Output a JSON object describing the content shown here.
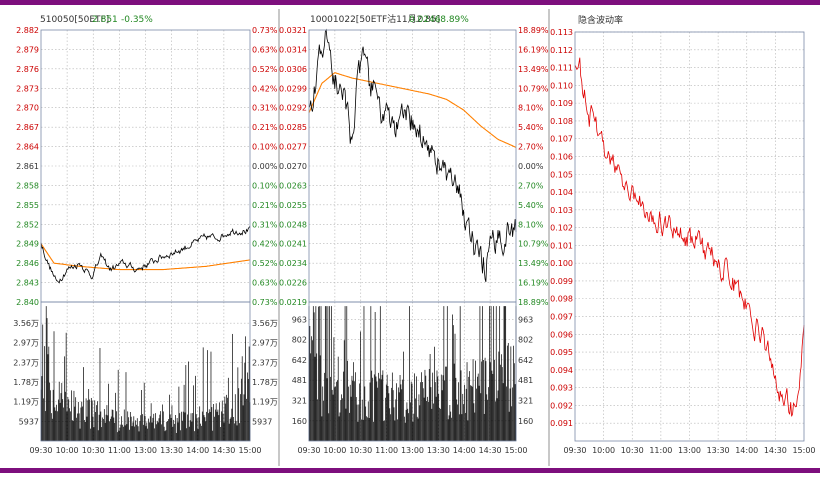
{
  "colors": {
    "frame": "#7d0f7d",
    "up": "#cc0000",
    "down": "#228822",
    "neutral": "#333333",
    "price_line": "#000000",
    "avg_line": "#ff8000",
    "iv_line": "#e00000",
    "grid": "#b4b4b4",
    "border": "#7a8aa8"
  },
  "chart_data": [
    {
      "type": "line",
      "title": "510050[50ETF]",
      "last_price": "2.851",
      "change_pct": "-0.35%",
      "x_ticks": [
        "09:30",
        "10:00",
        "10:30",
        "11:00",
        "13:00",
        "13:30",
        "14:00",
        "14:30",
        "15:00"
      ],
      "price_axis": {
        "ylim": [
          2.84,
          2.882
        ],
        "base": 2.861,
        "ticks": [
          "2.882",
          "2.879",
          "2.876",
          "2.873",
          "2.870",
          "2.867",
          "2.864",
          "2.861",
          "2.858",
          "2.855",
          "2.852",
          "2.849",
          "2.846",
          "2.843",
          "2.840"
        ]
      },
      "pct_axis": {
        "ticks": [
          "0.73%",
          "0.63%",
          "0.52%",
          "0.42%",
          "0.31%",
          "0.21%",
          "0.10%",
          "0.00%",
          "0.10%",
          "0.21%",
          "0.31%",
          "0.42%",
          "0.52%",
          "0.63%",
          "0.73%"
        ]
      },
      "volume_axis": {
        "max": 42000,
        "tick_values": [
          35600,
          29700,
          23700,
          17800,
          11900,
          5937
        ],
        "tick_labels": [
          "3.56万",
          "2.97万",
          "2.37万",
          "1.78万",
          "1.19万",
          "5937"
        ]
      },
      "price_series": {
        "name": "price",
        "knots": [
          [
            0,
            2.849
          ],
          [
            8,
            2.846
          ],
          [
            18,
            2.843
          ],
          [
            30,
            2.845
          ],
          [
            45,
            2.846
          ],
          [
            58,
            2.844
          ],
          [
            70,
            2.847
          ],
          [
            80,
            2.845
          ],
          [
            95,
            2.846
          ],
          [
            110,
            2.845
          ],
          [
            125,
            2.846
          ],
          [
            140,
            2.847
          ],
          [
            160,
            2.848
          ],
          [
            175,
            2.849
          ],
          [
            190,
            2.85
          ],
          [
            205,
            2.85
          ],
          [
            220,
            2.851
          ],
          [
            235,
            2.851
          ],
          [
            241,
            2.851
          ]
        ],
        "noise": 0.0009
      },
      "avg_series": {
        "name": "avg",
        "knots": [
          [
            0,
            2.849
          ],
          [
            15,
            2.846
          ],
          [
            45,
            2.8455
          ],
          [
            90,
            2.845
          ],
          [
            140,
            2.845
          ],
          [
            190,
            2.8455
          ],
          [
            241,
            2.8465
          ]
        ]
      },
      "volume_series": {
        "knots": [
          [
            0,
            34000
          ],
          [
            10,
            15000
          ],
          [
            30,
            11000
          ],
          [
            60,
            9000
          ],
          [
            100,
            7000
          ],
          [
            150,
            6000
          ],
          [
            200,
            8000
          ],
          [
            230,
            12000
          ],
          [
            241,
            30000
          ]
        ],
        "spike_chance": 0.12
      }
    },
    {
      "type": "line",
      "title": "10001022[50ETF沽11月2.85]",
      "last_price": "0.0246",
      "change_pct": "-8.89%",
      "x_ticks": [
        "09:30",
        "10:00",
        "10:30",
        "11:00",
        "13:00",
        "13:30",
        "14:00",
        "14:30",
        "15:00"
      ],
      "price_axis": {
        "ylim": [
          0.0219,
          0.0321
        ],
        "base": 0.027,
        "ticks": [
          "0.0321",
          "0.0314",
          "0.0306",
          "0.0299",
          "0.0292",
          "0.0285",
          "0.0277",
          "0.0270",
          "0.0263",
          "0.0255",
          "0.0248",
          "0.0241",
          "0.0234",
          "0.0226",
          "0.0219"
        ]
      },
      "pct_axis": {
        "ticks": [
          "18.89%",
          "16.19%",
          "13.49%",
          "10.79%",
          "8.10%",
          "5.40%",
          "2.70%",
          "0.00%",
          "2.70%",
          "5.40%",
          "8.10%",
          "10.79%",
          "13.49%",
          "16.19%",
          "18.89%"
        ]
      },
      "volume_axis": {
        "max": 1100,
        "tick_values": [
          963,
          802,
          642,
          481,
          321,
          160
        ],
        "tick_labels": [
          "963",
          "802",
          "642",
          "481",
          "321",
          "160"
        ]
      },
      "price_series": {
        "name": "price",
        "knots": [
          [
            0,
            0.029
          ],
          [
            6,
            0.03
          ],
          [
            14,
            0.0312
          ],
          [
            22,
            0.0318
          ],
          [
            30,
            0.0302
          ],
          [
            40,
            0.0296
          ],
          [
            48,
            0.0282
          ],
          [
            55,
            0.0296
          ],
          [
            62,
            0.031
          ],
          [
            70,
            0.0302
          ],
          [
            85,
            0.029
          ],
          [
            100,
            0.0284
          ],
          [
            115,
            0.0288
          ],
          [
            130,
            0.0282
          ],
          [
            145,
            0.0275
          ],
          [
            160,
            0.0266
          ],
          [
            175,
            0.0258
          ],
          [
            185,
            0.0248
          ],
          [
            195,
            0.0236
          ],
          [
            205,
            0.0233
          ],
          [
            212,
            0.0238
          ],
          [
            220,
            0.0242
          ],
          [
            230,
            0.0246
          ],
          [
            241,
            0.0246
          ]
        ],
        "noise": 0.0009
      },
      "avg_series": {
        "name": "avg",
        "knots": [
          [
            0,
            0.029
          ],
          [
            15,
            0.0301
          ],
          [
            30,
            0.0305
          ],
          [
            50,
            0.0303
          ],
          [
            80,
            0.0301
          ],
          [
            110,
            0.0299
          ],
          [
            140,
            0.0297
          ],
          [
            160,
            0.0295
          ],
          [
            180,
            0.0291
          ],
          [
            200,
            0.0285
          ],
          [
            220,
            0.028
          ],
          [
            241,
            0.0277
          ]
        ]
      },
      "volume_series": {
        "knots": [
          [
            0,
            650
          ],
          [
            20,
            520
          ],
          [
            60,
            420
          ],
          [
            100,
            380
          ],
          [
            150,
            400
          ],
          [
            200,
            480
          ],
          [
            241,
            560
          ]
        ],
        "spike_chance": 0.15
      }
    },
    {
      "type": "line",
      "title": "隐含波动率",
      "x_ticks": [
        "09:30",
        "10:00",
        "10:30",
        "11:00",
        "13:00",
        "13:30",
        "14:00",
        "14:30",
        "15:00"
      ],
      "y_axis": {
        "ylim": [
          0.09,
          0.113
        ],
        "ticks": [
          "0.113",
          "0.112",
          "0.111",
          "0.110",
          "0.109",
          "0.108",
          "0.107",
          "0.106",
          "0.105",
          "0.104",
          "0.103",
          "0.102",
          "0.101",
          "0.100",
          "0.099",
          "0.098",
          "0.097",
          "0.096",
          "0.095",
          "0.094",
          "0.093",
          "0.092",
          "0.091"
        ]
      },
      "iv_series": {
        "name": "iv",
        "knots": [
          [
            0,
            0.1115
          ],
          [
            5,
            0.111
          ],
          [
            15,
            0.1085
          ],
          [
            30,
            0.1065
          ],
          [
            45,
            0.105
          ],
          [
            60,
            0.104
          ],
          [
            80,
            0.103
          ],
          [
            100,
            0.102
          ],
          [
            120,
            0.1015
          ],
          [
            140,
            0.1005
          ],
          [
            160,
            0.0995
          ],
          [
            180,
            0.0975
          ],
          [
            200,
            0.0955
          ],
          [
            215,
            0.093
          ],
          [
            225,
            0.092
          ],
          [
            232,
            0.0915
          ],
          [
            237,
            0.0935
          ],
          [
            241,
            0.0965
          ]
        ],
        "noise": 0.0012
      }
    }
  ]
}
